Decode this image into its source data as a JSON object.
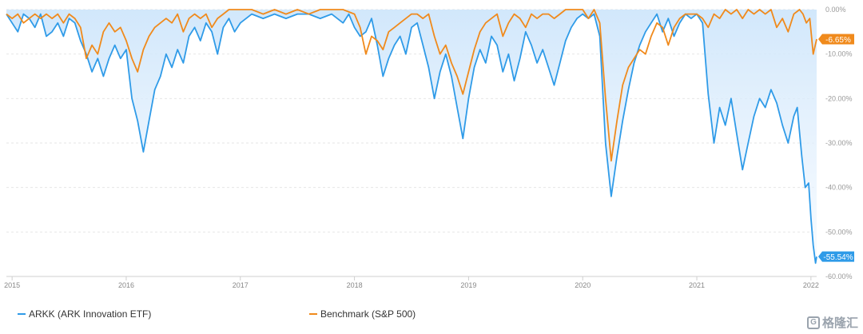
{
  "chart_data": {
    "type": "line",
    "title": "",
    "xlabel": "",
    "ylabel": "",
    "x_ticks": [
      "2015",
      "2016",
      "2017",
      "2018",
      "2019",
      "2020",
      "2021",
      "2022"
    ],
    "y_ticks": [
      "0.00%",
      "-10.00%",
      "-20.00%",
      "-30.00%",
      "-40.00%",
      "-50.00%",
      "-60.00%"
    ],
    "ylim": [
      -60,
      0
    ],
    "xlim": [
      2014.95,
      2022.05
    ],
    "grid": true,
    "legend_position": "bottom",
    "series": [
      {
        "name": "ARKK (ARK Innovation ETF)",
        "color": "#2f9be8",
        "end_label": "-55.54%",
        "points": [
          [
            2014.95,
            -1
          ],
          [
            2015.0,
            -3
          ],
          [
            2015.05,
            -5
          ],
          [
            2015.1,
            -1
          ],
          [
            2015.15,
            -2
          ],
          [
            2015.2,
            -4
          ],
          [
            2015.25,
            -1
          ],
          [
            2015.3,
            -6
          ],
          [
            2015.35,
            -5
          ],
          [
            2015.4,
            -3
          ],
          [
            2015.45,
            -6
          ],
          [
            2015.5,
            -2
          ],
          [
            2015.55,
            -3
          ],
          [
            2015.6,
            -7
          ],
          [
            2015.65,
            -10
          ],
          [
            2015.7,
            -14
          ],
          [
            2015.75,
            -11
          ],
          [
            2015.8,
            -15
          ],
          [
            2015.85,
            -11
          ],
          [
            2015.9,
            -8
          ],
          [
            2015.95,
            -11
          ],
          [
            2016.0,
            -9
          ],
          [
            2016.05,
            -20
          ],
          [
            2016.1,
            -25
          ],
          [
            2016.15,
            -32
          ],
          [
            2016.2,
            -25
          ],
          [
            2016.25,
            -18
          ],
          [
            2016.3,
            -15
          ],
          [
            2016.35,
            -10
          ],
          [
            2016.4,
            -13
          ],
          [
            2016.45,
            -9
          ],
          [
            2016.5,
            -12
          ],
          [
            2016.55,
            -6
          ],
          [
            2016.6,
            -4
          ],
          [
            2016.65,
            -7
          ],
          [
            2016.7,
            -3
          ],
          [
            2016.75,
            -5
          ],
          [
            2016.8,
            -10
          ],
          [
            2016.85,
            -4
          ],
          [
            2016.9,
            -2
          ],
          [
            2016.95,
            -5
          ],
          [
            2017.0,
            -3
          ],
          [
            2017.1,
            -1
          ],
          [
            2017.2,
            -2
          ],
          [
            2017.3,
            -1
          ],
          [
            2017.4,
            -2
          ],
          [
            2017.5,
            -1
          ],
          [
            2017.6,
            -1
          ],
          [
            2017.7,
            -2
          ],
          [
            2017.8,
            -1
          ],
          [
            2017.9,
            -3
          ],
          [
            2017.95,
            -1
          ],
          [
            2018.0,
            -4
          ],
          [
            2018.05,
            -6
          ],
          [
            2018.1,
            -5
          ],
          [
            2018.15,
            -2
          ],
          [
            2018.2,
            -8
          ],
          [
            2018.25,
            -15
          ],
          [
            2018.3,
            -11
          ],
          [
            2018.35,
            -8
          ],
          [
            2018.4,
            -6
          ],
          [
            2018.45,
            -10
          ],
          [
            2018.5,
            -4
          ],
          [
            2018.55,
            -3
          ],
          [
            2018.6,
            -8
          ],
          [
            2018.65,
            -13
          ],
          [
            2018.7,
            -20
          ],
          [
            2018.75,
            -14
          ],
          [
            2018.8,
            -10
          ],
          [
            2018.85,
            -15
          ],
          [
            2018.9,
            -22
          ],
          [
            2018.95,
            -29
          ],
          [
            2019.0,
            -20
          ],
          [
            2019.05,
            -13
          ],
          [
            2019.1,
            -9
          ],
          [
            2019.15,
            -12
          ],
          [
            2019.2,
            -6
          ],
          [
            2019.25,
            -8
          ],
          [
            2019.3,
            -14
          ],
          [
            2019.35,
            -10
          ],
          [
            2019.4,
            -16
          ],
          [
            2019.45,
            -11
          ],
          [
            2019.5,
            -5
          ],
          [
            2019.55,
            -8
          ],
          [
            2019.6,
            -12
          ],
          [
            2019.65,
            -9
          ],
          [
            2019.7,
            -13
          ],
          [
            2019.75,
            -17
          ],
          [
            2019.8,
            -12
          ],
          [
            2019.85,
            -7
          ],
          [
            2019.9,
            -4
          ],
          [
            2019.95,
            -2
          ],
          [
            2020.0,
            -1
          ],
          [
            2020.05,
            -2
          ],
          [
            2020.1,
            -1
          ],
          [
            2020.15,
            -6
          ],
          [
            2020.2,
            -30
          ],
          [
            2020.25,
            -42
          ],
          [
            2020.3,
            -33
          ],
          [
            2020.35,
            -25
          ],
          [
            2020.4,
            -18
          ],
          [
            2020.45,
            -12
          ],
          [
            2020.5,
            -8
          ],
          [
            2020.55,
            -5
          ],
          [
            2020.6,
            -3
          ],
          [
            2020.65,
            -1
          ],
          [
            2020.7,
            -5
          ],
          [
            2020.75,
            -2
          ],
          [
            2020.8,
            -6
          ],
          [
            2020.85,
            -3
          ],
          [
            2020.9,
            -1
          ],
          [
            2020.95,
            -2
          ],
          [
            2021.0,
            -1
          ],
          [
            2021.05,
            -3
          ],
          [
            2021.1,
            -19
          ],
          [
            2021.15,
            -30
          ],
          [
            2021.2,
            -22
          ],
          [
            2021.25,
            -26
          ],
          [
            2021.3,
            -20
          ],
          [
            2021.35,
            -28
          ],
          [
            2021.4,
            -36
          ],
          [
            2021.45,
            -30
          ],
          [
            2021.5,
            -24
          ],
          [
            2021.55,
            -20
          ],
          [
            2021.6,
            -22
          ],
          [
            2021.65,
            -18
          ],
          [
            2021.7,
            -21
          ],
          [
            2021.75,
            -26
          ],
          [
            2021.8,
            -30
          ],
          [
            2021.85,
            -24
          ],
          [
            2021.88,
            -22
          ],
          [
            2021.92,
            -33
          ],
          [
            2021.95,
            -40
          ],
          [
            2021.98,
            -39
          ],
          [
            2022.0,
            -47
          ],
          [
            2022.02,
            -53
          ],
          [
            2022.04,
            -57
          ],
          [
            2022.05,
            -55.54
          ]
        ]
      },
      {
        "name": "Benchmark (S&P 500)",
        "color": "#f08a1c",
        "end_label": "-6.65%",
        "points": [
          [
            2014.95,
            -1
          ],
          [
            2015.0,
            -2
          ],
          [
            2015.05,
            -1
          ],
          [
            2015.1,
            -3
          ],
          [
            2015.15,
            -2
          ],
          [
            2015.2,
            -1
          ],
          [
            2015.25,
            -2
          ],
          [
            2015.3,
            -1
          ],
          [
            2015.35,
            -2
          ],
          [
            2015.4,
            -1
          ],
          [
            2015.45,
            -3
          ],
          [
            2015.5,
            -1
          ],
          [
            2015.55,
            -2
          ],
          [
            2015.6,
            -4
          ],
          [
            2015.65,
            -11
          ],
          [
            2015.7,
            -8
          ],
          [
            2015.75,
            -10
          ],
          [
            2015.8,
            -5
          ],
          [
            2015.85,
            -3
          ],
          [
            2015.9,
            -5
          ],
          [
            2015.95,
            -4
          ],
          [
            2016.0,
            -7
          ],
          [
            2016.05,
            -11
          ],
          [
            2016.1,
            -14
          ],
          [
            2016.15,
            -9
          ],
          [
            2016.2,
            -6
          ],
          [
            2016.25,
            -4
          ],
          [
            2016.3,
            -3
          ],
          [
            2016.35,
            -2
          ],
          [
            2016.4,
            -3
          ],
          [
            2016.45,
            -1
          ],
          [
            2016.5,
            -5
          ],
          [
            2016.55,
            -2
          ],
          [
            2016.6,
            -1
          ],
          [
            2016.65,
            -2
          ],
          [
            2016.7,
            -1
          ],
          [
            2016.75,
            -4
          ],
          [
            2016.8,
            -2
          ],
          [
            2016.85,
            -1
          ],
          [
            2016.9,
            0
          ],
          [
            2017.0,
            0
          ],
          [
            2017.1,
            0
          ],
          [
            2017.2,
            -1
          ],
          [
            2017.3,
            0
          ],
          [
            2017.4,
            -1
          ],
          [
            2017.5,
            0
          ],
          [
            2017.6,
            -1
          ],
          [
            2017.7,
            0
          ],
          [
            2017.8,
            0
          ],
          [
            2017.9,
            0
          ],
          [
            2018.0,
            -1
          ],
          [
            2018.05,
            -4
          ],
          [
            2018.1,
            -10
          ],
          [
            2018.15,
            -6
          ],
          [
            2018.2,
            -7
          ],
          [
            2018.25,
            -9
          ],
          [
            2018.3,
            -5
          ],
          [
            2018.35,
            -4
          ],
          [
            2018.4,
            -3
          ],
          [
            2018.45,
            -2
          ],
          [
            2018.5,
            -1
          ],
          [
            2018.55,
            -1
          ],
          [
            2018.6,
            -2
          ],
          [
            2018.65,
            -1
          ],
          [
            2018.7,
            -6
          ],
          [
            2018.75,
            -10
          ],
          [
            2018.8,
            -8
          ],
          [
            2018.85,
            -12
          ],
          [
            2018.9,
            -15
          ],
          [
            2018.95,
            -19
          ],
          [
            2019.0,
            -14
          ],
          [
            2019.05,
            -9
          ],
          [
            2019.1,
            -5
          ],
          [
            2019.15,
            -3
          ],
          [
            2019.2,
            -2
          ],
          [
            2019.25,
            -1
          ],
          [
            2019.3,
            -6
          ],
          [
            2019.35,
            -3
          ],
          [
            2019.4,
            -1
          ],
          [
            2019.45,
            -2
          ],
          [
            2019.5,
            -4
          ],
          [
            2019.55,
            -1
          ],
          [
            2019.6,
            -2
          ],
          [
            2019.65,
            -1
          ],
          [
            2019.7,
            -1
          ],
          [
            2019.75,
            -2
          ],
          [
            2019.8,
            -1
          ],
          [
            2019.85,
            0
          ],
          [
            2019.9,
            0
          ],
          [
            2020.0,
            0
          ],
          [
            2020.05,
            -2
          ],
          [
            2020.1,
            0
          ],
          [
            2020.15,
            -3
          ],
          [
            2020.2,
            -20
          ],
          [
            2020.25,
            -34
          ],
          [
            2020.3,
            -25
          ],
          [
            2020.35,
            -17
          ],
          [
            2020.4,
            -13
          ],
          [
            2020.45,
            -11
          ],
          [
            2020.5,
            -9
          ],
          [
            2020.55,
            -10
          ],
          [
            2020.6,
            -6
          ],
          [
            2020.65,
            -3
          ],
          [
            2020.7,
            -4
          ],
          [
            2020.75,
            -8
          ],
          [
            2020.8,
            -4
          ],
          [
            2020.85,
            -2
          ],
          [
            2020.9,
            -1
          ],
          [
            2020.95,
            -1
          ],
          [
            2021.0,
            -1
          ],
          [
            2021.05,
            -2
          ],
          [
            2021.1,
            -4
          ],
          [
            2021.15,
            -1
          ],
          [
            2021.2,
            -2
          ],
          [
            2021.25,
            0
          ],
          [
            2021.3,
            -1
          ],
          [
            2021.35,
            0
          ],
          [
            2021.4,
            -2
          ],
          [
            2021.45,
            0
          ],
          [
            2021.5,
            -1
          ],
          [
            2021.55,
            0
          ],
          [
            2021.6,
            -1
          ],
          [
            2021.65,
            0
          ],
          [
            2021.7,
            -4
          ],
          [
            2021.75,
            -2
          ],
          [
            2021.8,
            -5
          ],
          [
            2021.85,
            -1
          ],
          [
            2021.9,
            0
          ],
          [
            2021.93,
            -1
          ],
          [
            2021.96,
            -3
          ],
          [
            2021.99,
            -2
          ],
          [
            2022.02,
            -10
          ],
          [
            2022.05,
            -6.65
          ]
        ]
      }
    ]
  },
  "watermark": "格隆汇"
}
